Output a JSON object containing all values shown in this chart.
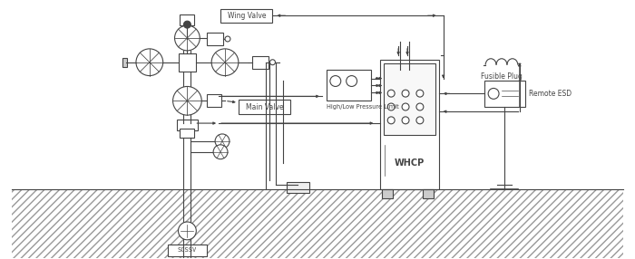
{
  "bg_color": "#ffffff",
  "lc": "#444444",
  "lw": 0.8,
  "fig_width": 7.0,
  "fig_height": 2.86,
  "dpi": 100,
  "labels": {
    "wing_valve": "Wing Valve",
    "main_valve": "Main Valve",
    "high_low": "High/Low Pressure Limit",
    "whcp": "WHCP",
    "fusible_plug": "Fusible Plug",
    "remote_esd": "Remote ESD",
    "scssv": "SCSSV"
  }
}
